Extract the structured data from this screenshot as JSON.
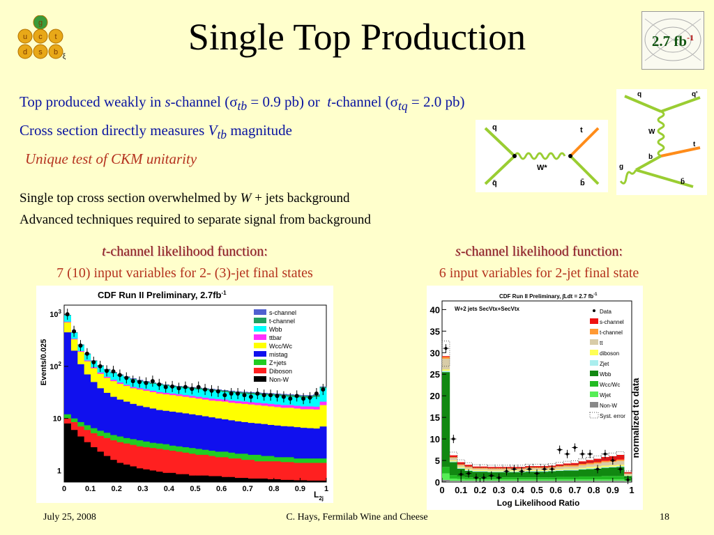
{
  "title": "Single Top Production",
  "lumi_badge": "2.7 fb",
  "lumi_badge_sup": "-1",
  "quark_logo": [
    "g",
    "u",
    "c",
    "t",
    "d",
    "s",
    "b",
    "ξ"
  ],
  "lines": {
    "l1_a": "Top produced weakly in ",
    "l1_s": "s",
    "l1_b": "-channel (",
    "l1_sigma1": "σ",
    "l1_sub1": "tb",
    "l1_c": " = 0.9 pb) or ",
    "l1_t": "t",
    "l1_d": "-channel (",
    "l1_sigma2": "σ",
    "l1_sub2": "tq",
    "l1_e": " = 2.0 pb)",
    "l2_a": "Cross section directly measures ",
    "l2_V": "V",
    "l2_sub": "tb",
    "l2_b": " magnitude",
    "l3": "Unique test of CKM unitarity",
    "l4_a": "Single top cross section overwhelmed by ",
    "l4_W": "W",
    "l4_b": " + jets background",
    "l5": "Advanced techniques required to separate signal from background"
  },
  "diagrams": {
    "s_channel": {
      "q": "q",
      "qbar": "q̄",
      "t": "t",
      "b": "b̄",
      "W": "W*"
    },
    "t_channel": {
      "q_top": "q",
      "q_out": "q'",
      "W": "W",
      "b": "b",
      "t": "t",
      "g": "g",
      "b_out": "b̄"
    }
  },
  "left": {
    "head_t": "t",
    "head": "-channel likelihood function:",
    "sub": "7 (10) input variables for 2- (3)-jet final states"
  },
  "right": {
    "head_s": "s",
    "head": "-channel likelihood function:",
    "sub": "6 input variables for 2-jet final state"
  },
  "chart_data": [
    {
      "type": "area",
      "title": "CDF Run II Preliminary, 2.7fb",
      "title_sup": "-1",
      "xlabel": "L",
      "xlabel_sub": "2j",
      "ylabel": "Events/0.025",
      "y_scale": "log",
      "ylim": [
        0.6,
        1500
      ],
      "xlim": [
        0,
        1
      ],
      "x_ticks": [
        "0",
        "0.1",
        "0.2",
        "0.3",
        "0.4",
        "0.5",
        "0.6",
        "0.7",
        "0.8",
        "0.9",
        "1"
      ],
      "y_ticks": [
        {
          "base": "1",
          "exp": ""
        },
        {
          "base": "10",
          "exp": ""
        },
        {
          "base": "10",
          "exp": "2"
        },
        {
          "base": "10",
          "exp": "3"
        }
      ],
      "legend_position": "top-right",
      "series": [
        {
          "name": "Non-W",
          "color": "#000000"
        },
        {
          "name": "Diboson",
          "color": "#ff2020"
        },
        {
          "name": "Z+jets",
          "color": "#22cc22"
        },
        {
          "name": "mistag",
          "color": "#1010ee"
        },
        {
          "name": "Wcc/Wc",
          "color": "#ffff00"
        },
        {
          "name": "ttbar",
          "color": "#ff30ff"
        },
        {
          "name": "Wbb",
          "color": "#00ffff"
        },
        {
          "name": "t-channel",
          "color": "#20a060"
        },
        {
          "name": "s-channel",
          "color": "#5060d0"
        }
      ],
      "legend": [
        "s-channel",
        "t-channel",
        "Wbb",
        "ttbar",
        "Wcc/Wc",
        "mistag",
        "Z+jets",
        "Diboson",
        "Non-W"
      ],
      "x": [
        0.0125,
        0.0375,
        0.0625,
        0.0875,
        0.1125,
        0.1375,
        0.1625,
        0.1875,
        0.2125,
        0.2375,
        0.2625,
        0.2875,
        0.3125,
        0.3375,
        0.3625,
        0.3875,
        0.4125,
        0.4375,
        0.4625,
        0.4875,
        0.5125,
        0.5375,
        0.5625,
        0.5875,
        0.6125,
        0.6375,
        0.6625,
        0.6875,
        0.7125,
        0.7375,
        0.7625,
        0.7875,
        0.8125,
        0.8375,
        0.8625,
        0.8875,
        0.9125,
        0.9375,
        0.9625,
        0.9875
      ],
      "cumulative": {
        "Non-W": [
          8,
          6,
          4.5,
          3.5,
          2.8,
          2.3,
          1.9,
          1.6,
          1.4,
          1.3,
          1.2,
          1.1,
          1.05,
          1.0,
          0.95,
          0.9,
          0.9,
          0.85,
          0.85,
          0.8,
          0.8,
          0.8,
          0.78,
          0.78,
          0.75,
          0.75,
          0.72,
          0.72,
          0.7,
          0.7,
          0.7,
          0.68,
          0.68,
          0.66,
          0.66,
          0.65,
          0.65,
          0.64,
          0.64,
          0.64
        ],
        "Diboson": [
          10,
          8.5,
          7,
          6,
          5.2,
          4.6,
          4.2,
          3.8,
          3.5,
          3.3,
          3.1,
          2.9,
          2.8,
          2.7,
          2.6,
          2.5,
          2.4,
          2.3,
          2.2,
          2.1,
          2.0,
          2.0,
          1.9,
          1.8,
          1.8,
          1.7,
          1.7,
          1.6,
          1.6,
          1.5,
          1.5,
          1.5,
          1.5,
          1.45,
          1.45,
          1.4,
          1.4,
          1.4,
          1.4,
          1.4
        ],
        "Z+jets": [
          12,
          10,
          8.5,
          7.4,
          6.5,
          5.8,
          5.3,
          4.8,
          4.5,
          4.2,
          4.0,
          3.8,
          3.6,
          3.4,
          3.3,
          3.2,
          3.0,
          2.9,
          2.8,
          2.7,
          2.6,
          2.5,
          2.4,
          2.3,
          2.3,
          2.2,
          2.1,
          2.1,
          2.0,
          2.0,
          1.9,
          1.9,
          1.8,
          1.8,
          1.8,
          1.7,
          1.7,
          1.7,
          1.7,
          1.7
        ],
        "mistag": [
          450,
          200,
          110,
          70,
          50,
          38,
          31,
          26,
          23,
          21,
          19,
          17.5,
          16.5,
          15.5,
          14.5,
          14,
          13.5,
          13,
          12.5,
          12,
          11.5,
          11,
          10.5,
          10,
          9.6,
          9.2,
          8.8,
          8.5,
          8.2,
          8.0,
          7.8,
          7.5,
          7.3,
          7.1,
          7.0,
          6.8,
          6.6,
          6.5,
          6.4,
          7.0
        ],
        "Wcc/Wc": [
          700,
          330,
          190,
          125,
          92,
          72,
          60,
          52,
          46,
          42,
          38,
          36,
          34,
          32,
          30,
          29,
          28,
          27,
          26,
          25,
          24,
          23,
          22,
          21.5,
          21,
          20,
          19.5,
          19,
          18.5,
          18,
          17.5,
          17,
          16.5,
          16,
          16,
          15.5,
          15,
          15,
          14.8,
          18
        ],
        "ttbar": [
          720,
          340,
          197,
          130,
          96,
          76,
          63,
          55,
          49,
          44,
          40,
          38,
          36,
          34,
          32,
          31,
          30,
          29,
          28,
          27,
          26,
          25,
          24,
          23.5,
          23,
          22,
          21.5,
          21,
          20.5,
          20,
          19.5,
          19,
          18.5,
          18,
          18,
          17.5,
          17,
          17,
          16.8,
          21
        ],
        "Wbb": [
          950,
          440,
          255,
          170,
          125,
          100,
          84,
          74,
          66,
          60,
          55,
          51,
          48,
          46,
          44,
          42,
          40,
          39,
          38,
          37,
          36,
          35,
          34,
          33,
          32,
          31,
          30,
          29.5,
          29,
          28.5,
          28,
          27.5,
          27,
          26.5,
          26,
          25.5,
          25,
          25,
          26,
          38
        ],
        "t-channel": [
          965,
          447,
          260,
          174,
          128,
          103,
          87,
          76,
          68,
          62,
          57,
          53,
          50,
          48,
          46,
          44,
          42,
          41,
          40,
          39,
          38,
          37,
          36,
          35,
          34,
          33,
          32,
          31.5,
          31,
          30.5,
          30,
          29.5,
          29,
          28.5,
          28,
          27.5,
          27,
          27,
          28,
          40
        ],
        "s-channel": [
          975,
          452,
          264,
          177,
          130,
          105,
          89,
          78,
          70,
          64,
          59,
          55,
          52,
          49,
          47,
          45,
          43,
          42,
          41,
          40,
          39,
          38,
          37,
          36,
          35,
          34,
          33,
          32.5,
          32,
          31.5,
          31,
          30.5,
          30,
          29.5,
          29,
          28.5,
          28,
          28,
          29,
          41
        ]
      },
      "data_points": [
        [
          0.0125,
          1000
        ],
        [
          0.0375,
          470
        ],
        [
          0.0625,
          250
        ],
        [
          0.0875,
          175
        ],
        [
          0.1125,
          120
        ],
        [
          0.1375,
          100
        ],
        [
          0.1625,
          82
        ],
        [
          0.1875,
          80
        ],
        [
          0.2125,
          68
        ],
        [
          0.2375,
          60
        ],
        [
          0.2625,
          52
        ],
        [
          0.2875,
          50
        ],
        [
          0.3125,
          48
        ],
        [
          0.3375,
          52
        ],
        [
          0.3625,
          45
        ],
        [
          0.3875,
          40
        ],
        [
          0.4125,
          41
        ],
        [
          0.4375,
          38
        ],
        [
          0.4625,
          40
        ],
        [
          0.4875,
          37
        ],
        [
          0.5125,
          40
        ],
        [
          0.5375,
          36
        ],
        [
          0.5625,
          34
        ],
        [
          0.5875,
          33
        ],
        [
          0.6125,
          28
        ],
        [
          0.6375,
          30
        ],
        [
          0.6625,
          30
        ],
        [
          0.6875,
          28
        ],
        [
          0.7125,
          26
        ],
        [
          0.7375,
          30
        ],
        [
          0.7625,
          28
        ],
        [
          0.7875,
          28
        ],
        [
          0.8125,
          27
        ],
        [
          0.8375,
          26
        ],
        [
          0.8625,
          24
        ],
        [
          0.8875,
          27
        ],
        [
          0.9125,
          24
        ],
        [
          0.9375,
          25
        ],
        [
          0.9625,
          30
        ],
        [
          0.9875,
          36
        ]
      ]
    },
    {
      "type": "bar",
      "title": "CDF Run II Preliminary, ∫Ldt = 2.7 fb",
      "title_sup": "-1",
      "subtitle": "W+2 jets SecVtx+SecVtx",
      "xlabel": "Log Likelihood Ratio",
      "ylabel": "normalized to data",
      "ylim": [
        0,
        42
      ],
      "xlim": [
        0,
        1
      ],
      "x_ticks": [
        "0",
        "0.1",
        "0.2",
        "0.3",
        "0.4",
        "0.5",
        "0.6",
        "0.7",
        "0.8",
        "0.9",
        "1"
      ],
      "y_ticks": [
        "0",
        "5",
        "10",
        "15",
        "20",
        "25",
        "30",
        "35",
        "40"
      ],
      "legend_position": "top-right",
      "legend": [
        "Data",
        "s-channel",
        "t-channel",
        "tt",
        "diboson",
        "Zjet",
        "Wbb",
        "Wcc/Wc",
        "Wjet",
        "Non-W",
        "Syst. error"
      ],
      "series": [
        {
          "name": "Non-W",
          "color": "#888888"
        },
        {
          "name": "Wjet",
          "color": "#55ee55"
        },
        {
          "name": "Wcc/Wc",
          "color": "#22bb22"
        },
        {
          "name": "Wbb",
          "color": "#118811"
        },
        {
          "name": "Zjet",
          "color": "#aaeeee"
        },
        {
          "name": "diboson",
          "color": "#ffff55"
        },
        {
          "name": "tt",
          "color": "#d8cca8"
        },
        {
          "name": "t-channel",
          "color": "#ff9933"
        },
        {
          "name": "s-channel",
          "color": "#ee1111"
        }
      ],
      "bins": 25,
      "stacks": [
        [
          0.5,
          1.5,
          1.5,
          22,
          0.3,
          0.3,
          2.5,
          0.4,
          0.2
        ],
        [
          0.3,
          0.5,
          0.8,
          3.0,
          0.2,
          0.2,
          0.6,
          0.2,
          0.4
        ],
        [
          0.3,
          0.4,
          0.6,
          1.8,
          0.2,
          0.2,
          0.4,
          0.2,
          0.5
        ],
        [
          0.3,
          0.3,
          0.5,
          1.5,
          0.2,
          0.2,
          0.4,
          0.2,
          0.4
        ],
        [
          0.3,
          0.3,
          0.5,
          1.3,
          0.2,
          0.2,
          0.3,
          0.2,
          0.3
        ],
        [
          0.3,
          0.3,
          0.5,
          1.3,
          0.2,
          0.2,
          0.3,
          0.2,
          0.3
        ],
        [
          0.3,
          0.3,
          0.5,
          1.2,
          0.2,
          0.2,
          0.3,
          0.2,
          0.3
        ],
        [
          0.3,
          0.3,
          0.5,
          1.2,
          0.2,
          0.2,
          0.3,
          0.2,
          0.3
        ],
        [
          0.3,
          0.3,
          0.5,
          1.2,
          0.2,
          0.2,
          0.3,
          0.2,
          0.3
        ],
        [
          0.3,
          0.3,
          0.5,
          1.2,
          0.2,
          0.2,
          0.3,
          0.2,
          0.3
        ],
        [
          0.3,
          0.3,
          0.5,
          1.2,
          0.2,
          0.2,
          0.3,
          0.2,
          0.3
        ],
        [
          0.3,
          0.3,
          0.5,
          1.3,
          0.2,
          0.2,
          0.4,
          0.2,
          0.3
        ],
        [
          0.3,
          0.3,
          0.5,
          1.3,
          0.2,
          0.2,
          0.4,
          0.2,
          0.3
        ],
        [
          0.3,
          0.3,
          0.5,
          1.3,
          0.2,
          0.2,
          0.4,
          0.2,
          0.3
        ],
        [
          0.3,
          0.3,
          0.5,
          1.4,
          0.2,
          0.2,
          0.4,
          0.2,
          0.3
        ],
        [
          0.3,
          0.3,
          0.6,
          1.4,
          0.2,
          0.2,
          0.5,
          0.2,
          0.4
        ],
        [
          0.3,
          0.3,
          0.6,
          1.5,
          0.2,
          0.2,
          0.5,
          0.3,
          0.4
        ],
        [
          0.3,
          0.3,
          0.6,
          1.5,
          0.2,
          0.2,
          0.5,
          0.3,
          0.5
        ],
        [
          0.3,
          0.3,
          0.7,
          1.6,
          0.2,
          0.2,
          0.6,
          0.3,
          0.6
        ],
        [
          0.3,
          0.3,
          0.7,
          1.7,
          0.2,
          0.3,
          0.6,
          0.3,
          0.7
        ],
        [
          0.3,
          0.3,
          0.7,
          1.8,
          0.2,
          0.3,
          0.7,
          0.3,
          0.8
        ],
        [
          0.3,
          0.3,
          0.8,
          1.9,
          0.2,
          0.3,
          0.8,
          0.3,
          0.9
        ],
        [
          0.3,
          0.3,
          0.8,
          2.0,
          0.2,
          0.3,
          0.8,
          0.3,
          1.0
        ],
        [
          0.3,
          0.3,
          0.8,
          2.1,
          0.2,
          0.3,
          0.9,
          0.3,
          1.1
        ],
        [
          0.2,
          0.2,
          0.4,
          0.6,
          0.1,
          0.1,
          0.3,
          0.1,
          0.3
        ]
      ],
      "data_points": [
        [
          0.02,
          31
        ],
        [
          0.06,
          10
        ],
        [
          0.1,
          1.8
        ],
        [
          0.14,
          2
        ],
        [
          0.18,
          1
        ],
        [
          0.22,
          1
        ],
        [
          0.26,
          1.5
        ],
        [
          0.3,
          1
        ],
        [
          0.34,
          2.5
        ],
        [
          0.38,
          3
        ],
        [
          0.42,
          2.5
        ],
        [
          0.46,
          3
        ],
        [
          0.5,
          2
        ],
        [
          0.54,
          3
        ],
        [
          0.58,
          3
        ],
        [
          0.62,
          7.5
        ],
        [
          0.66,
          6.5
        ],
        [
          0.7,
          8
        ],
        [
          0.74,
          6.5
        ],
        [
          0.78,
          6.5
        ],
        [
          0.82,
          3
        ],
        [
          0.86,
          6.5
        ],
        [
          0.9,
          5
        ],
        [
          0.94,
          3
        ],
        [
          0.98,
          0.5
        ]
      ]
    }
  ],
  "footer": {
    "date": "July 25, 2008",
    "center": "C. Hays, Fermilab Wine and Cheese",
    "page": "18"
  }
}
